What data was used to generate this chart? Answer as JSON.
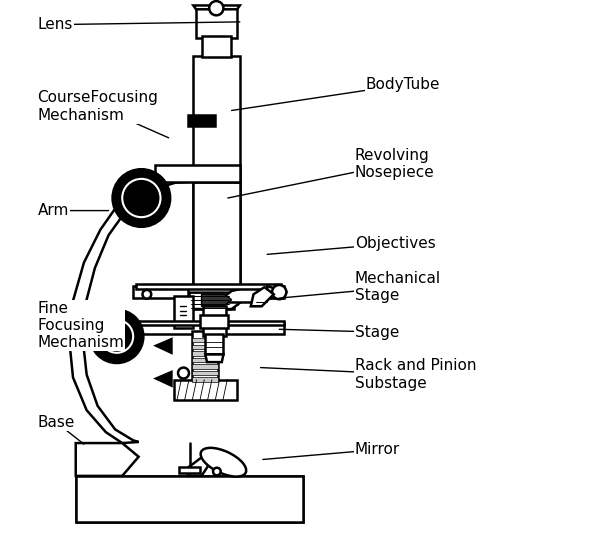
{
  "background_color": "#ffffff",
  "line_color": "#000000",
  "line_width": 1.8,
  "labels": {
    "Lens": [
      0.02,
      0.955,
      0.405,
      0.96
    ],
    "CourseFocusing\nMechanism": [
      0.02,
      0.805,
      0.265,
      0.748
    ],
    "BodyTube": [
      0.62,
      0.845,
      0.395,
      0.8
    ],
    "Revolving\nNosepiece": [
      0.6,
      0.7,
      0.368,
      0.638
    ],
    "Arm": [
      0.02,
      0.615,
      0.155,
      0.615
    ],
    "Objectives": [
      0.6,
      0.555,
      0.445,
      0.535
    ],
    "Mechanical\nStage": [
      0.6,
      0.475,
      0.465,
      0.452
    ],
    "Fine\nFocusing\nMechanism": [
      0.02,
      0.405,
      0.175,
      0.415
    ],
    "Stage": [
      0.6,
      0.393,
      0.465,
      0.398
    ],
    "Rack and Pinion\nSubstage": [
      0.6,
      0.315,
      0.43,
      0.328
    ],
    "Base": [
      0.02,
      0.228,
      0.105,
      0.188
    ],
    "Mirror": [
      0.6,
      0.178,
      0.435,
      0.162
    ]
  }
}
